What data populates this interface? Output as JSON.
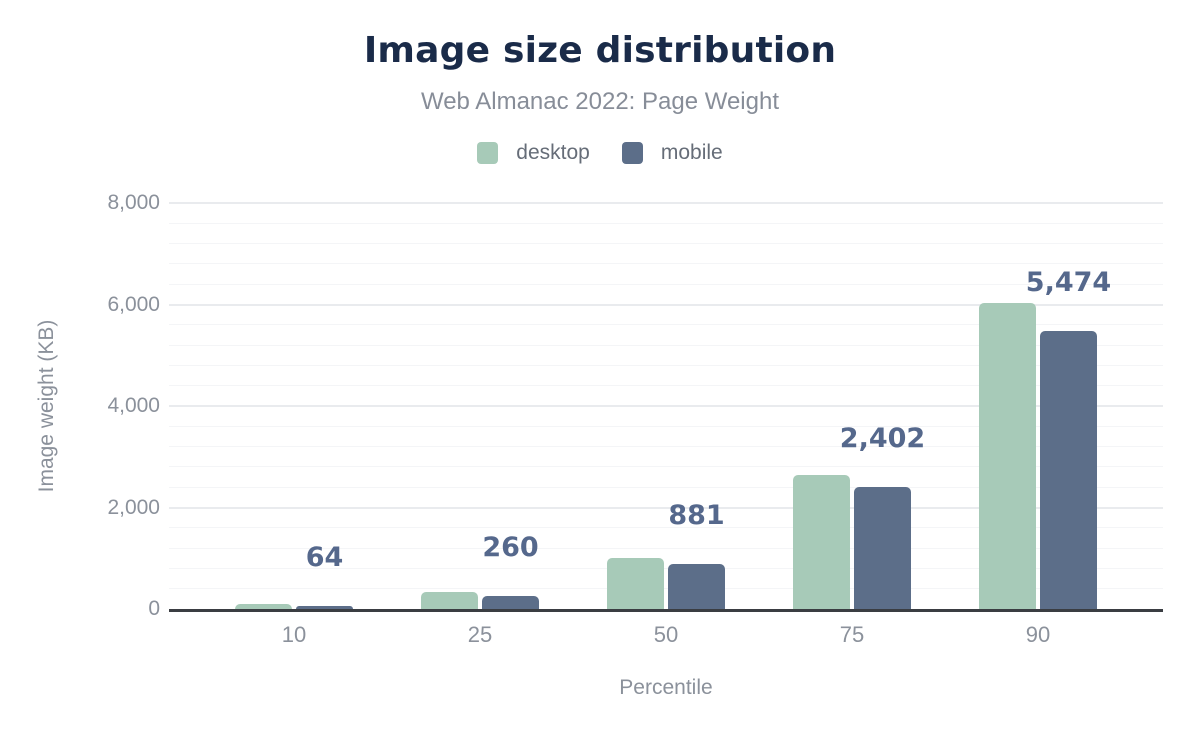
{
  "header": {
    "title": "Image size distribution",
    "subtitle": "Web Almanac 2022: Page Weight"
  },
  "chart_data": {
    "type": "bar",
    "title": "Image size distribution",
    "subtitle": "Web Almanac 2022: Page Weight",
    "categories": [
      "10",
      "25",
      "50",
      "75",
      "90"
    ],
    "series": [
      {
        "name": "desktop",
        "color": "#a7cab8",
        "values": [
          97,
          331,
          1010,
          2650,
          6030
        ]
      },
      {
        "name": "mobile",
        "color": "#5c6e89",
        "values": [
          64,
          260,
          881,
          2402,
          5474
        ],
        "value_labels": [
          "64",
          "260",
          "881",
          "2,402",
          "5,474"
        ]
      }
    ],
    "xlabel": "Percentile",
    "ylabel": "Image weight (KB)",
    "ylim": [
      0,
      8000
    ],
    "y_ticks": [
      {
        "value": 0,
        "label": "0"
      },
      {
        "value": 2000,
        "label": "2,000"
      },
      {
        "value": 4000,
        "label": "4,000"
      },
      {
        "value": 6000,
        "label": "6,000"
      },
      {
        "value": 8000,
        "label": "8,000"
      }
    ],
    "grid": {
      "major_step": 2000,
      "minor_step": 400
    },
    "legend_position": "top",
    "data_labels_series": "mobile"
  },
  "colors": {
    "title": "#1a2b49",
    "subtitle": "#878d98",
    "legend_text": "#666d78",
    "tick_text": "#8b919b",
    "data_label": "#55688c",
    "axis_line": "#3a3d42",
    "gridline_major": "#e9ebee",
    "gridline_minor": "#f4f5f7",
    "background": "#ffffff"
  }
}
